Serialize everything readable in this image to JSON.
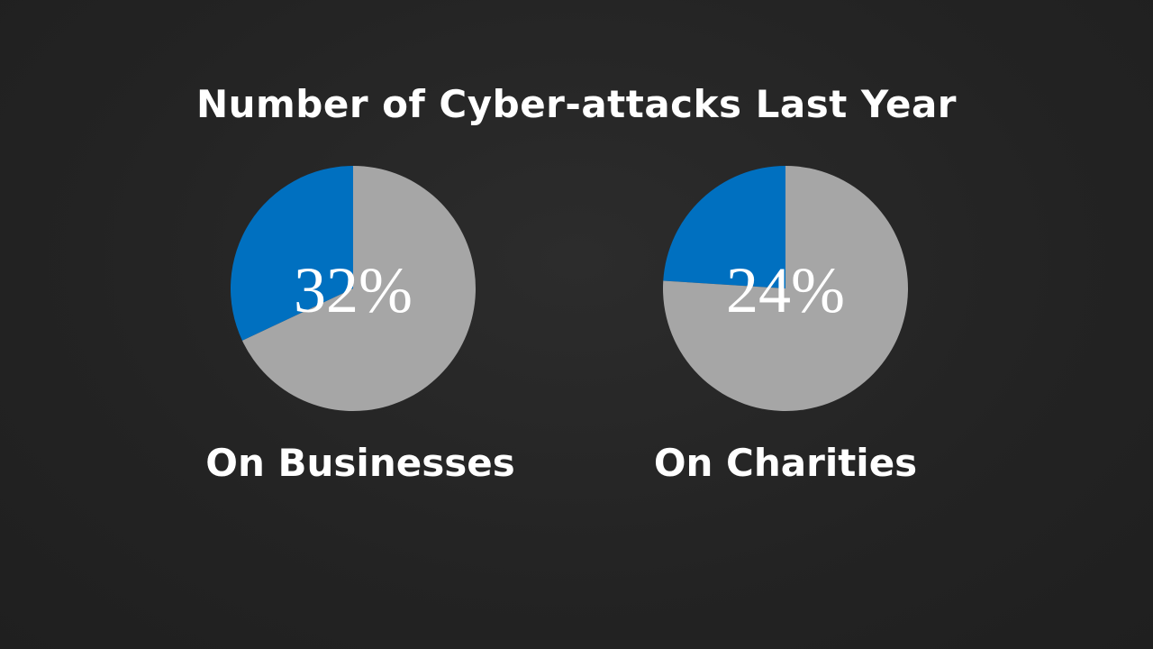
{
  "chart_data": {
    "type": "pie",
    "title": "Number of Cyber-attacks Last Year",
    "charts": [
      {
        "label": "On Businesses",
        "value_label": "32%",
        "slices": [
          {
            "value": 32,
            "color": "#0070C0"
          },
          {
            "value": 68,
            "color": "#A6A6A6"
          }
        ]
      },
      {
        "label": "On Charities",
        "value_label": "24%",
        "slices": [
          {
            "value": 24,
            "color": "#0070C0"
          },
          {
            "value": 76,
            "color": "#A6A6A6"
          }
        ]
      }
    ]
  }
}
